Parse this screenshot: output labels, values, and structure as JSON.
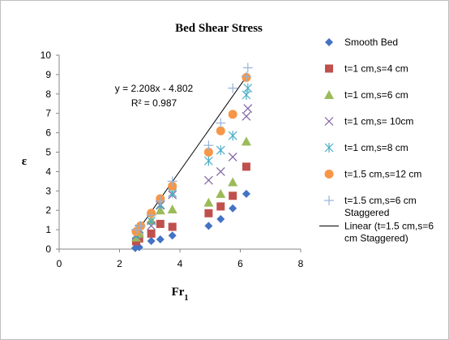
{
  "chart_data": {
    "type": "scatter",
    "title": "Bed Shear Stress",
    "xlabel": "Fr",
    "xlabel_sub": "1",
    "ylabel": "ε",
    "xlim": [
      0,
      8
    ],
    "ylim": [
      0,
      10
    ],
    "xticks": [
      "0",
      "2",
      "4",
      "6",
      "8"
    ],
    "yticks": [
      "0",
      "1",
      "2",
      "3",
      "4",
      "5",
      "6",
      "7",
      "8",
      "9",
      "10"
    ],
    "grid": false,
    "legend_position": "right",
    "trendline_equation": "y = 2.208x - 4.802",
    "trendline_r2": "R² = 0.987",
    "series": [
      {
        "name": "Smooth Bed",
        "marker": "diamond",
        "color": "#4472C4",
        "points": [
          [
            2.52,
            0.05
          ],
          [
            2.65,
            0.1
          ],
          [
            3.05,
            0.42
          ],
          [
            3.35,
            0.5
          ],
          [
            3.75,
            0.7
          ],
          [
            4.95,
            1.2
          ],
          [
            5.35,
            1.55
          ],
          [
            5.75,
            2.1
          ],
          [
            6.2,
            2.85
          ]
        ]
      },
      {
        "name": "t=1 cm,s=4 cm",
        "marker": "square",
        "color": "#C0504D",
        "points": [
          [
            2.55,
            0.4
          ],
          [
            2.65,
            0.55
          ],
          [
            3.05,
            0.8
          ],
          [
            3.35,
            1.3
          ],
          [
            3.75,
            1.15
          ],
          [
            4.95,
            1.85
          ],
          [
            5.35,
            2.2
          ],
          [
            5.75,
            2.75
          ],
          [
            6.2,
            4.25
          ]
        ]
      },
      {
        "name": "t=1 cm,s=6 cm",
        "marker": "triangle",
        "color": "#9BBB59",
        "points": [
          [
            2.55,
            0.6
          ],
          [
            2.65,
            0.8
          ],
          [
            3.05,
            1.5
          ],
          [
            3.35,
            2.0
          ],
          [
            3.75,
            2.05
          ],
          [
            4.95,
            2.4
          ],
          [
            5.35,
            2.85
          ],
          [
            5.75,
            3.45
          ],
          [
            6.2,
            5.55
          ]
        ]
      },
      {
        "name": "t=1 cm,s= 10cm",
        "marker": "x",
        "color": "#8064A2",
        "points": [
          [
            2.55,
            0.7
          ],
          [
            2.65,
            1.0
          ],
          [
            3.05,
            1.2
          ],
          [
            3.35,
            2.25
          ],
          [
            3.75,
            2.8
          ],
          [
            4.95,
            3.55
          ],
          [
            5.35,
            4.0
          ],
          [
            5.75,
            4.75
          ],
          [
            6.2,
            6.85
          ],
          [
            6.25,
            7.25
          ]
        ]
      },
      {
        "name": "t=1 cm,s=8 cm",
        "marker": "asterisk",
        "color": "#4BACC6",
        "points": [
          [
            2.55,
            0.75
          ],
          [
            2.65,
            1.05
          ],
          [
            3.05,
            1.45
          ],
          [
            3.35,
            2.3
          ],
          [
            3.75,
            2.9
          ],
          [
            4.95,
            4.55
          ],
          [
            5.35,
            5.1
          ],
          [
            5.75,
            5.85
          ],
          [
            6.2,
            7.95
          ],
          [
            6.25,
            8.3
          ]
        ]
      },
      {
        "name": "t=1.5 cm,s=12 cm",
        "marker": "circle",
        "color": "#F79646",
        "points": [
          [
            2.55,
            0.9
          ],
          [
            2.7,
            1.2
          ],
          [
            3.05,
            1.85
          ],
          [
            3.35,
            2.6
          ],
          [
            3.75,
            3.25
          ],
          [
            4.95,
            5.0
          ],
          [
            5.35,
            6.1
          ],
          [
            5.75,
            6.95
          ],
          [
            6.2,
            8.85
          ]
        ]
      },
      {
        "name": "t=1.5 cm,s=6 cm Staggered",
        "name_lines": [
          "t=1.5 cm,s=6 cm",
          "Staggered"
        ],
        "marker": "plus",
        "color": "#95B3D7",
        "points": [
          [
            2.55,
            1.0
          ],
          [
            2.7,
            1.2
          ],
          [
            3.05,
            1.75
          ],
          [
            3.35,
            2.5
          ],
          [
            3.75,
            3.5
          ],
          [
            4.95,
            5.35
          ],
          [
            5.35,
            6.5
          ],
          [
            5.75,
            8.3
          ],
          [
            6.2,
            8.9
          ],
          [
            6.25,
            9.35
          ]
        ]
      }
    ],
    "trendline": {
      "name": "Linear (t=1.5 cm,s=6 cm Staggered)",
      "name_lines": [
        "Linear (t=1.5 cm,s=6",
        "cm Staggered)"
      ],
      "slope": 2.208,
      "intercept": -4.802,
      "x_range": [
        2.55,
        6.25
      ],
      "color": "#000000"
    }
  }
}
